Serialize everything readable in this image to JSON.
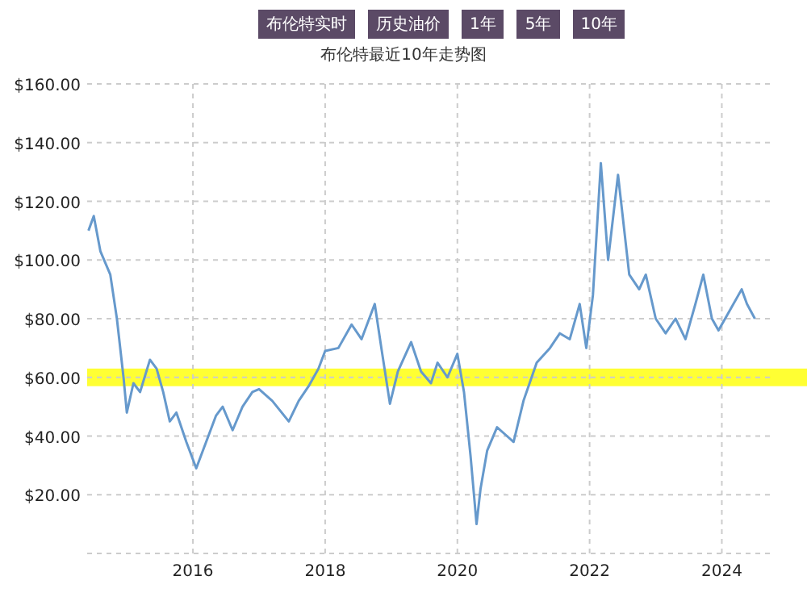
{
  "chart_data": {
    "type": "line",
    "title": "布伦特最近10年走势图",
    "annotations": [
      "布伦特实时",
      "历史油价",
      "1年",
      "5年",
      "10年"
    ],
    "x": [
      2014.42,
      2014.5,
      2014.6,
      2014.75,
      2014.85,
      2014.95,
      2015.0,
      2015.1,
      2015.2,
      2015.35,
      2015.45,
      2015.55,
      2015.65,
      2015.75,
      2015.9,
      2016.05,
      2016.2,
      2016.35,
      2016.45,
      2016.6,
      2016.75,
      2016.9,
      2017.0,
      2017.2,
      2017.45,
      2017.6,
      2017.75,
      2017.9,
      2018.0,
      2018.2,
      2018.4,
      2018.55,
      2018.75,
      2018.85,
      2018.98,
      2019.1,
      2019.3,
      2019.45,
      2019.6,
      2019.7,
      2019.85,
      2020.0,
      2020.1,
      2020.2,
      2020.29,
      2020.35,
      2020.45,
      2020.6,
      2020.75,
      2020.85,
      2021.0,
      2021.2,
      2021.4,
      2021.55,
      2021.7,
      2021.85,
      2021.95,
      2022.05,
      2022.17,
      2022.28,
      2022.43,
      2022.6,
      2022.75,
      2022.85,
      2023.0,
      2023.15,
      2023.3,
      2023.45,
      2023.6,
      2023.72,
      2023.85,
      2023.95,
      2024.1,
      2024.3,
      2024.38,
      2024.5
    ],
    "series": [
      {
        "color": "#6699cc",
        "values": [
          110,
          115,
          103,
          95,
          80,
          60,
          48,
          58,
          55,
          66,
          63,
          55,
          45,
          48,
          38,
          29,
          38,
          47,
          50,
          42,
          50,
          55,
          56,
          52,
          45,
          52,
          57,
          63,
          69,
          70,
          78,
          73,
          85,
          70,
          51,
          62,
          72,
          62,
          58,
          65,
          60,
          68,
          55,
          33,
          10,
          22,
          35,
          43,
          40,
          38,
          52,
          65,
          70,
          75,
          73,
          85,
          70,
          88,
          133,
          100,
          129,
          95,
          90,
          95,
          80,
          75,
          80,
          73,
          85,
          95,
          80,
          76,
          82,
          90,
          85,
          80
        ]
      }
    ],
    "xlim": [
      2014.4,
      2024.8
    ],
    "xticks": [
      2016,
      2018,
      2020,
      2022,
      2024
    ],
    "ylim": [
      0,
      160
    ],
    "yticks": [
      {
        "value": 20,
        "label": "$20.00"
      },
      {
        "value": 40,
        "label": "$40.00"
      },
      {
        "value": 60,
        "label": "$60.00"
      },
      {
        "value": 80,
        "label": "$80.00"
      },
      {
        "value": 100,
        "label": "$100.00"
      },
      {
        "value": 120,
        "label": "$120.00"
      },
      {
        "value": 140,
        "label": "$140.00"
      },
      {
        "value": 160,
        "label": "$160.00"
      }
    ],
    "bands": [
      {
        "axis": "y",
        "from": 57,
        "to": 63,
        "color": "#ffff33"
      }
    ],
    "grid": true
  }
}
